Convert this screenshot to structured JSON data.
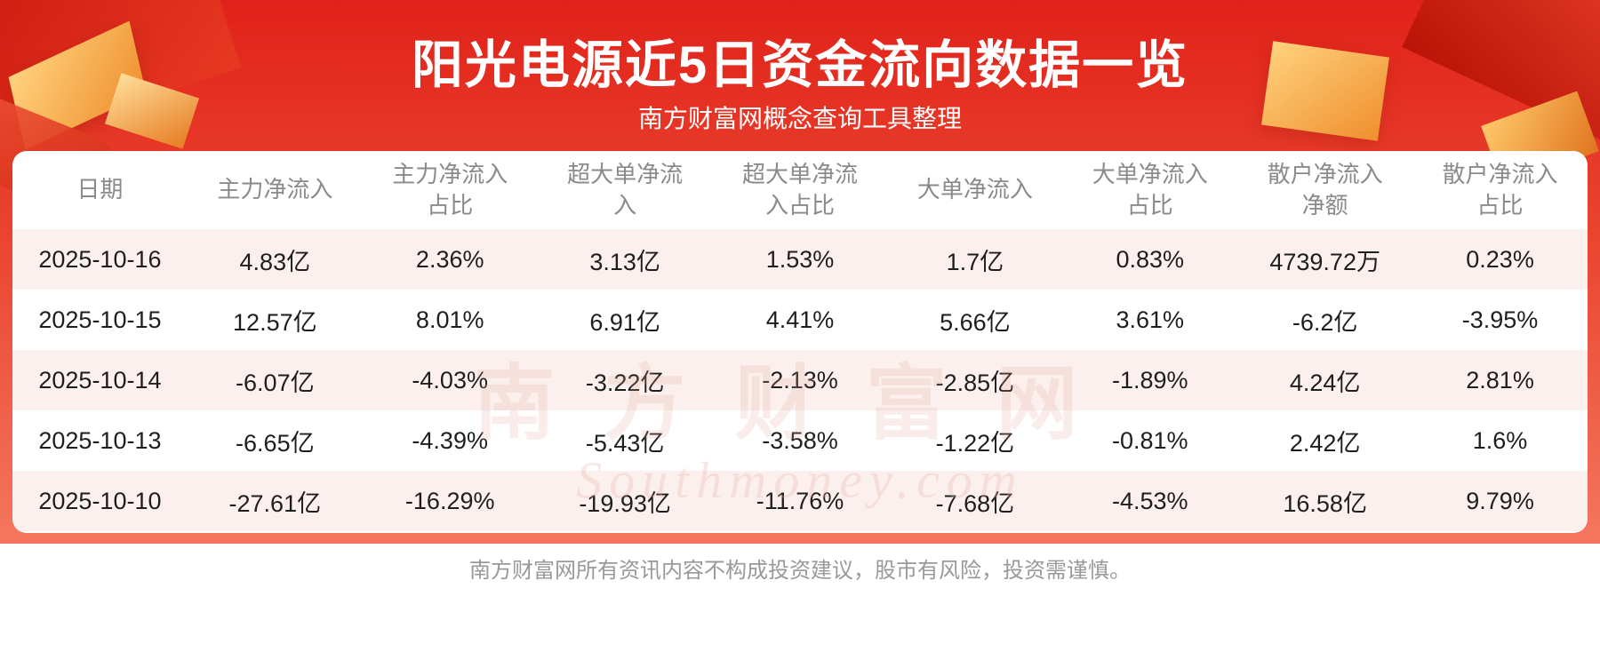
{
  "page": {
    "title": "阳光电源近5日资金流向数据一览",
    "subtitle": "南方财富网概念查询工具整理",
    "footer": "南方财富网所有资讯内容不构成投资建议，股市有风险，投资需谨慎。"
  },
  "watermark": {
    "line1": "南方财富网",
    "line2": "Southmoney.com"
  },
  "colors": {
    "bg_top": "#e1221a",
    "bg_bottom": "#f4765f",
    "stripe": "#fcf0ee",
    "header_text": "#8a8a8a",
    "cell_text": "#1e1e1e",
    "footer_text": "#999999",
    "gold_accent": "#ef8f2e"
  },
  "chart_data": {
    "type": "table",
    "title": "阳光电源近5日资金流向数据一览",
    "columns": [
      "日期",
      "主力净流入",
      "主力净流入占比",
      "超大单净流入",
      "超大单净流入占比",
      "大单净流入",
      "大单净流入占比",
      "散户净流入净额",
      "散户净流入占比"
    ],
    "rows": [
      [
        "2025-10-16",
        "4.83亿",
        "2.36%",
        "3.13亿",
        "1.53%",
        "1.7亿",
        "0.83%",
        "4739.72万",
        "0.23%"
      ],
      [
        "2025-10-15",
        "12.57亿",
        "8.01%",
        "6.91亿",
        "4.41%",
        "5.66亿",
        "3.61%",
        "-6.2亿",
        "-3.95%"
      ],
      [
        "2025-10-14",
        "-6.07亿",
        "-4.03%",
        "-3.22亿",
        "-2.13%",
        "-2.85亿",
        "-1.89%",
        "4.24亿",
        "2.81%"
      ],
      [
        "2025-10-13",
        "-6.65亿",
        "-4.39%",
        "-5.43亿",
        "-3.58%",
        "-1.22亿",
        "-0.81%",
        "2.42亿",
        "1.6%"
      ],
      [
        "2025-10-10",
        "-27.61亿",
        "-16.29%",
        "-19.93亿",
        "-11.76%",
        "-7.68亿",
        "-4.53%",
        "16.58亿",
        "9.79%"
      ]
    ]
  }
}
